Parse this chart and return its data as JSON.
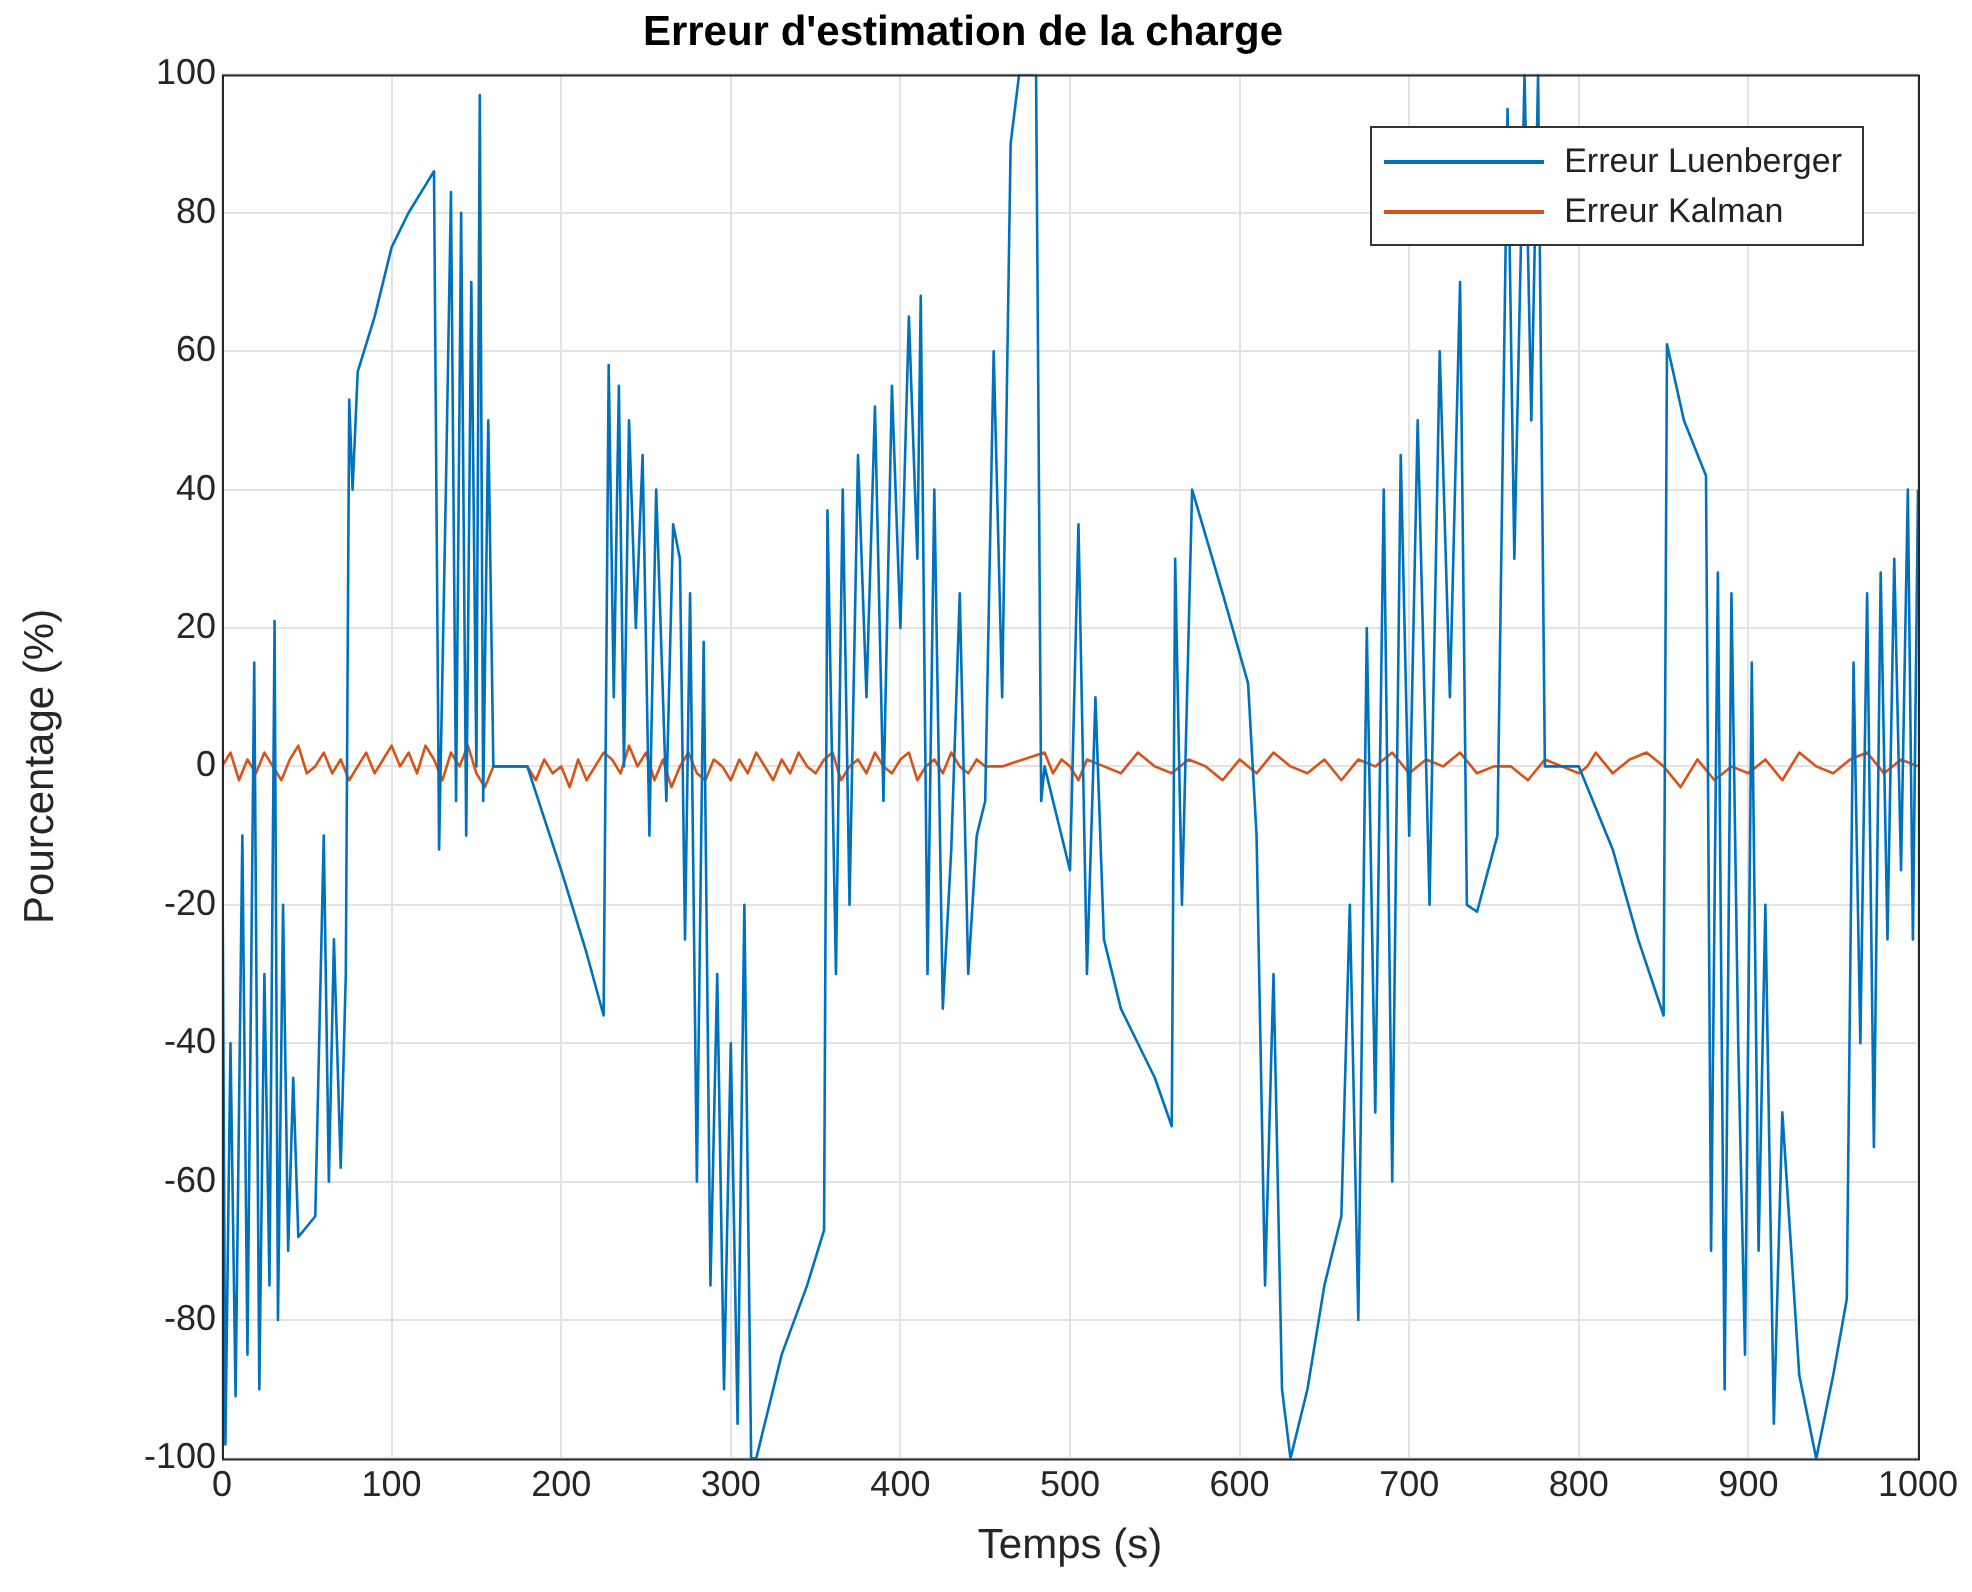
{
  "chart_data": {
    "type": "line",
    "title": "Erreur d'estimation de la charge",
    "xlabel": "Temps (s)",
    "ylabel": "Pourcentage (%)",
    "xlim": [
      0,
      1000
    ],
    "xticks": [
      0,
      100,
      200,
      300,
      400,
      500,
      600,
      700,
      800,
      900,
      1000
    ],
    "ylim": [
      -100,
      100
    ],
    "yticks": [
      -100,
      -80,
      -60,
      -40,
      -20,
      0,
      20,
      40,
      60,
      80,
      100
    ],
    "grid": true,
    "legend": "top right",
    "marker": "none",
    "line_style": "solid",
    "series": [
      {
        "name": "Erreur Luenberger",
        "color": "#0072bd",
        "x": [
          0,
          2,
          5,
          8,
          12,
          15,
          19,
          22,
          25,
          28,
          31,
          33,
          36,
          39,
          42,
          45,
          55,
          60,
          63,
          66,
          70,
          73,
          75,
          77,
          80,
          90,
          100,
          110,
          120,
          125,
          128,
          132,
          135,
          138,
          141,
          144,
          147,
          150,
          152,
          154,
          157,
          160,
          180,
          200,
          215,
          225,
          228,
          231,
          234,
          237,
          240,
          244,
          248,
          252,
          256,
          262,
          266,
          270,
          273,
          276,
          280,
          284,
          288,
          292,
          296,
          300,
          304,
          308,
          312,
          315,
          330,
          345,
          355,
          357,
          362,
          366,
          370,
          375,
          380,
          385,
          390,
          395,
          400,
          405,
          410,
          412,
          416,
          420,
          425,
          430,
          435,
          440,
          445,
          450,
          455,
          460,
          465,
          470,
          480,
          483,
          485,
          500,
          505,
          510,
          515,
          520,
          530,
          540,
          550,
          560,
          562,
          566,
          572,
          590,
          605,
          610,
          615,
          620,
          625,
          630,
          640,
          650,
          660,
          665,
          670,
          675,
          680,
          685,
          690,
          695,
          700,
          705,
          712,
          718,
          724,
          730,
          734,
          740,
          752,
          758,
          762,
          768,
          772,
          776,
          780,
          800,
          820,
          835,
          850,
          852,
          862,
          875,
          878,
          882,
          886,
          890,
          894,
          898,
          902,
          906,
          910,
          915,
          920,
          930,
          940,
          950,
          958,
          962,
          966,
          970,
          974,
          978,
          982,
          986,
          990,
          994,
          997,
          1000
        ],
        "values": [
          0,
          -98,
          -40,
          -91,
          -10,
          -85,
          15,
          -90,
          -30,
          -75,
          21,
          -80,
          -20,
          -70,
          -45,
          -68,
          -65,
          -10,
          -60,
          -25,
          -58,
          -30,
          53,
          40,
          57,
          65,
          75,
          80,
          84,
          86,
          -12,
          40,
          83,
          -5,
          80,
          -10,
          70,
          0,
          97,
          -5,
          50,
          0,
          0,
          -15,
          -27,
          -36,
          58,
          10,
          55,
          0,
          50,
          20,
          45,
          -10,
          40,
          -5,
          35,
          30,
          -25,
          25,
          -60,
          18,
          -75,
          -30,
          -90,
          -40,
          -95,
          -20,
          -100,
          -100,
          -85,
          -75,
          -67,
          37,
          -30,
          40,
          -20,
          45,
          10,
          52,
          -5,
          55,
          20,
          65,
          30,
          68,
          -30,
          40,
          -35,
          -12,
          25,
          -30,
          -10,
          -5,
          60,
          10,
          90,
          100,
          100,
          -5,
          0,
          -15,
          35,
          -30,
          10,
          -25,
          -35,
          -40,
          -45,
          -52,
          30,
          -20,
          40,
          25,
          12,
          -10,
          -75,
          -30,
          -90,
          -100,
          -90,
          -75,
          -65,
          -20,
          -80,
          20,
          -50,
          40,
          -60,
          45,
          -10,
          50,
          -20,
          60,
          10,
          70,
          -20,
          -21,
          -10,
          95,
          30,
          100,
          50,
          100,
          0,
          0,
          -12,
          -25,
          -36,
          61,
          50,
          42,
          -70,
          28,
          -90,
          25,
          -40,
          -85,
          15,
          -70,
          -20,
          -95,
          -50,
          -88,
          -100,
          -88,
          -77,
          15,
          -40,
          25,
          -55,
          28,
          -25,
          30,
          -15,
          40,
          -25,
          40
        ]
      },
      {
        "name": "Erreur Kalman",
        "color": "#d95319",
        "x": [
          0,
          5,
          10,
          15,
          20,
          25,
          30,
          35,
          40,
          45,
          50,
          55,
          60,
          65,
          70,
          75,
          80,
          85,
          90,
          95,
          100,
          105,
          110,
          115,
          120,
          125,
          130,
          135,
          140,
          145,
          150,
          155,
          160,
          180,
          185,
          190,
          195,
          200,
          205,
          210,
          215,
          220,
          225,
          230,
          235,
          240,
          245,
          250,
          255,
          260,
          265,
          270,
          275,
          280,
          285,
          290,
          295,
          300,
          305,
          310,
          315,
          320,
          325,
          330,
          335,
          340,
          345,
          350,
          355,
          360,
          365,
          370,
          375,
          380,
          385,
          390,
          395,
          400,
          405,
          410,
          415,
          420,
          425,
          430,
          435,
          440,
          445,
          450,
          455,
          460,
          485,
          490,
          495,
          500,
          505,
          510,
          520,
          530,
          540,
          550,
          560,
          570,
          580,
          590,
          600,
          610,
          620,
          630,
          640,
          650,
          660,
          670,
          680,
          690,
          700,
          710,
          720,
          730,
          740,
          750,
          760,
          770,
          780,
          800,
          805,
          810,
          820,
          830,
          840,
          850,
          860,
          870,
          880,
          890,
          900,
          910,
          920,
          930,
          940,
          950,
          960,
          970,
          980,
          990,
          1000
        ],
        "values": [
          0,
          2,
          -2,
          1,
          -1,
          2,
          0,
          -2,
          1,
          3,
          -1,
          0,
          2,
          -1,
          1,
          -2,
          0,
          2,
          -1,
          1,
          3,
          0,
          2,
          -1,
          3,
          1,
          -2,
          2,
          0,
          3,
          -1,
          -3,
          0,
          0,
          -2,
          1,
          -1,
          0,
          -3,
          1,
          -2,
          0,
          2,
          1,
          -1,
          3,
          0,
          2,
          -2,
          1,
          -3,
          0,
          2,
          -1,
          -2,
          1,
          0,
          -2,
          1,
          -1,
          2,
          0,
          -2,
          1,
          -1,
          2,
          0,
          -1,
          1,
          2,
          -2,
          0,
          1,
          -1,
          2,
          0,
          -1,
          1,
          2,
          -2,
          0,
          1,
          -1,
          2,
          0,
          -1,
          1,
          0,
          0,
          0,
          2,
          -1,
          1,
          0,
          -2,
          1,
          0,
          -1,
          2,
          0,
          -1,
          1,
          0,
          -2,
          1,
          -1,
          2,
          0,
          -1,
          1,
          -2,
          1,
          0,
          2,
          -1,
          1,
          0,
          2,
          -1,
          0,
          0,
          -2,
          1,
          -1,
          0,
          2,
          -1,
          1,
          2,
          0,
          -3,
          1,
          -2,
          0,
          -1,
          1,
          -2,
          2,
          0,
          -1,
          1,
          2,
          -1,
          1,
          0
        ]
      }
    ]
  }
}
